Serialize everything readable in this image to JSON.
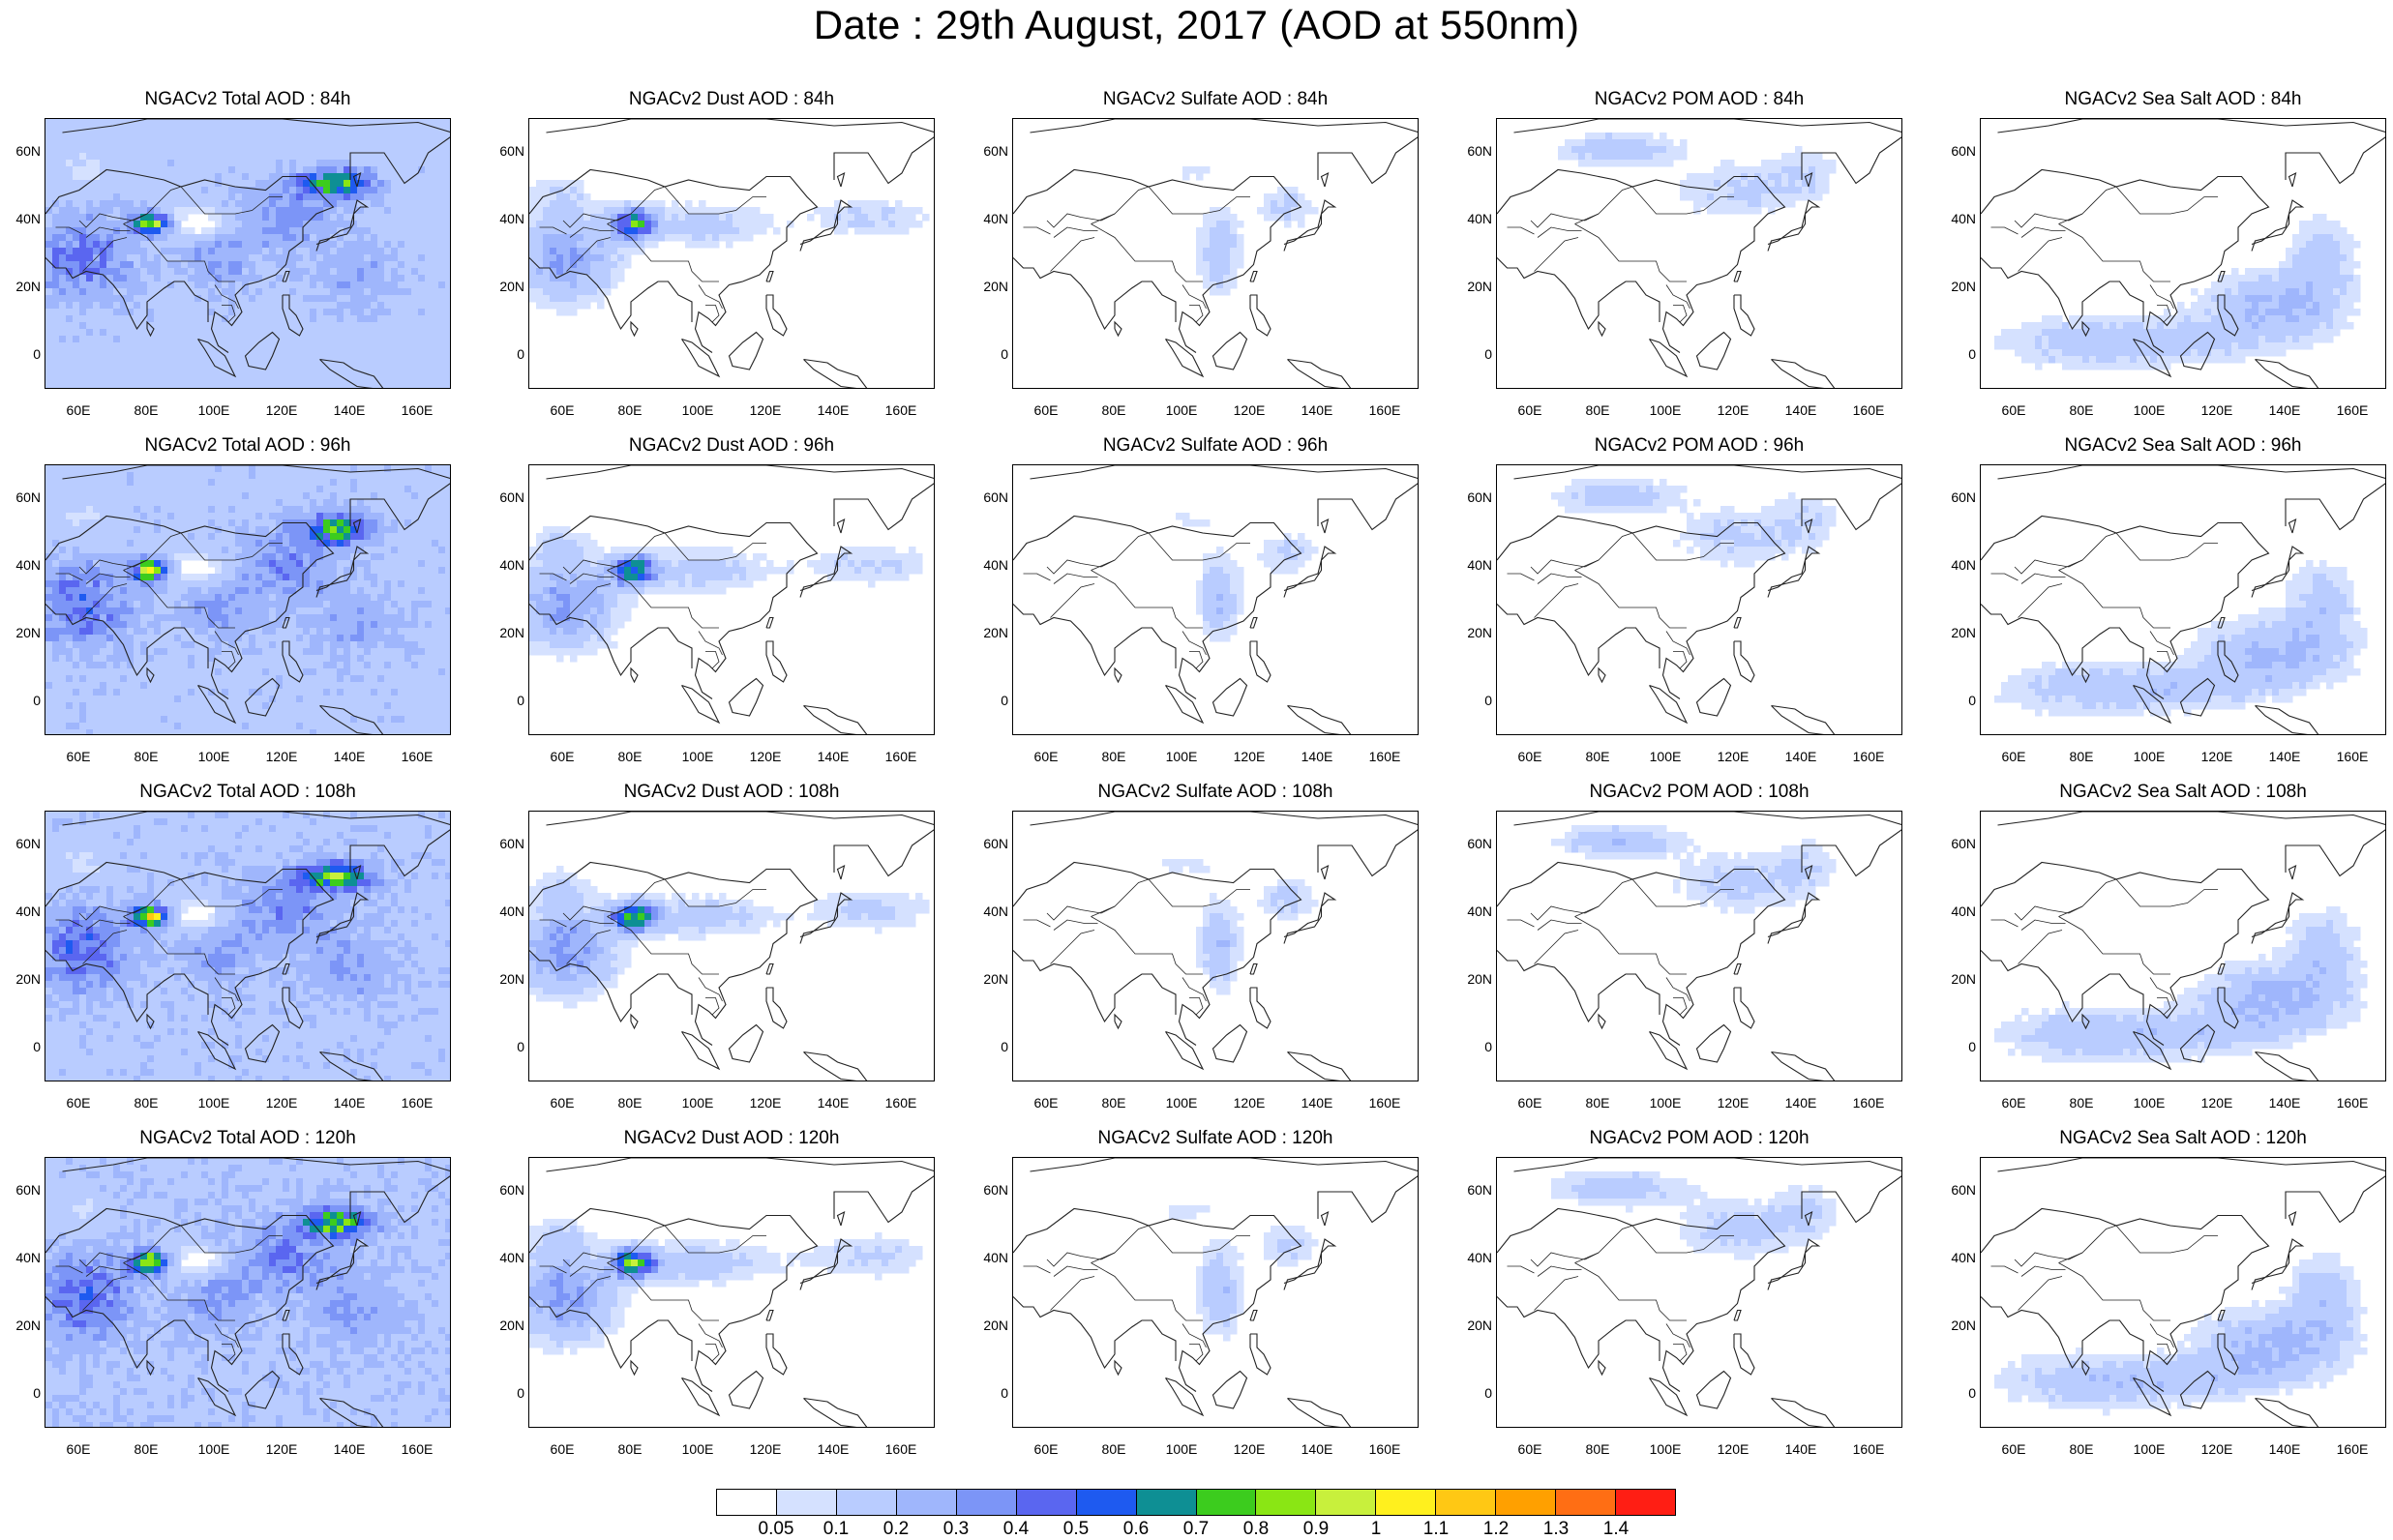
{
  "title": "Date : 29th August, 2017 (AOD at 550nm)",
  "lat_labels": [
    "60N",
    "40N",
    "20N",
    "0"
  ],
  "lon_labels": [
    "60E",
    "80E",
    "100E",
    "120E",
    "140E",
    "160E"
  ],
  "panels": [
    {
      "title": "NGACv2 Total AOD : 84h",
      "species": "total"
    },
    {
      "title": "NGACv2 Dust AOD : 84h",
      "species": "dust"
    },
    {
      "title": "NGACv2 Sulfate AOD : 84h",
      "species": "sulfate"
    },
    {
      "title": "NGACv2 POM AOD : 84h",
      "species": "pom"
    },
    {
      "title": "NGACv2 Sea Salt AOD : 84h",
      "species": "seasalt"
    },
    {
      "title": "NGACv2 Total AOD : 96h",
      "species": "total"
    },
    {
      "title": "NGACv2 Dust AOD : 96h",
      "species": "dust"
    },
    {
      "title": "NGACv2 Sulfate AOD : 96h",
      "species": "sulfate"
    },
    {
      "title": "NGACv2 POM AOD : 96h",
      "species": "pom"
    },
    {
      "title": "NGACv2 Sea Salt AOD : 96h",
      "species": "seasalt"
    },
    {
      "title": "NGACv2 Total AOD : 108h",
      "species": "total"
    },
    {
      "title": "NGACv2 Dust AOD : 108h",
      "species": "dust"
    },
    {
      "title": "NGACv2 Sulfate AOD : 108h",
      "species": "sulfate"
    },
    {
      "title": "NGACv2 POM AOD : 108h",
      "species": "pom"
    },
    {
      "title": "NGACv2 Sea Salt AOD : 108h",
      "species": "seasalt"
    },
    {
      "title": "NGACv2 Total AOD : 120h",
      "species": "total"
    },
    {
      "title": "NGACv2 Dust AOD : 120h",
      "species": "dust"
    },
    {
      "title": "NGACv2 Sulfate AOD : 120h",
      "species": "sulfate"
    },
    {
      "title": "NGACv2 POM AOD : 120h",
      "species": "pom"
    },
    {
      "title": "NGACv2 Sea Salt  AOD : 120h",
      "species": "seasalt"
    }
  ],
  "colorbar": {
    "labels": [
      "0.05",
      "0.1",
      "0.2",
      "0.3",
      "0.4",
      "0.5",
      "0.6",
      "0.7",
      "0.8",
      "0.9",
      "1",
      "1.1",
      "1.2",
      "1.3",
      "1.4"
    ],
    "colors": [
      "#ffffff",
      "#d5e1ff",
      "#b9ccff",
      "#9fb6fc",
      "#7c95f7",
      "#5a66f0",
      "#1e5af0",
      "#0e8f94",
      "#3ccc1e",
      "#8ae614",
      "#c8f03c",
      "#fff01e",
      "#ffc814",
      "#ffa000",
      "#ff6e14",
      "#ff1e14"
    ]
  },
  "map_extent": {
    "lon_min": 50,
    "lon_max": 170,
    "lat_min": -10,
    "lat_max": 70
  }
}
